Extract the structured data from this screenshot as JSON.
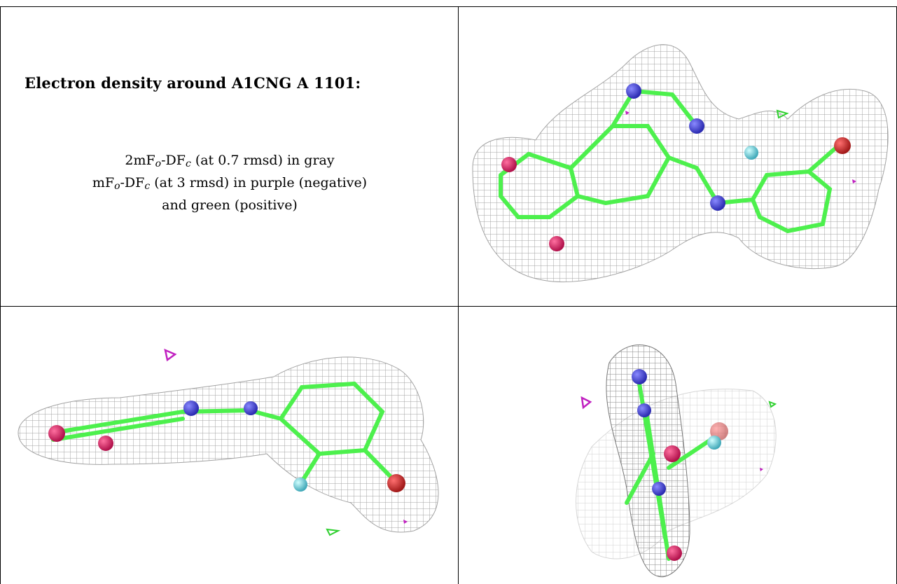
{
  "caption": {
    "title": "Electron density around A1CNG A 1101:",
    "line1_prefix": "2mF",
    "line1_sub1": "o",
    "line1_mid": "-DF",
    "line1_sub2": "c",
    "line1_suffix": " (at 0.7 rmsd) in gray",
    "line2_prefix": "mF",
    "line2_sub1": "o",
    "line2_mid": "-DF",
    "line2_sub2": "c",
    "line2_suffix": " (at 3 rmsd) in purple (negative)",
    "line3": "and green (positive)"
  },
  "colors": {
    "mesh": "#9a9a9a",
    "carbon": "#4df04d",
    "nitrogen": "#3a3ad8",
    "oxygen": "#e0206a",
    "chlorine": "#d83030",
    "fluorine": "#80e0e8",
    "negative": "#c020c0",
    "positive": "#30d030"
  },
  "panels": [
    {
      "view": "top-right-view"
    },
    {
      "view": "bottom-left-view"
    },
    {
      "view": "bottom-right-view"
    }
  ]
}
